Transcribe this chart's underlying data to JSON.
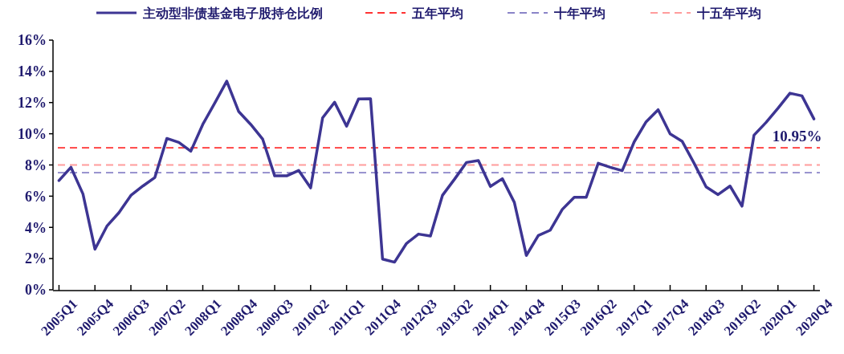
{
  "chart_data": {
    "type": "line",
    "categories": [
      "2005Q1",
      null,
      null,
      "2005Q4",
      null,
      null,
      "2006Q3",
      null,
      null,
      "2007Q2",
      null,
      null,
      "2008Q1",
      null,
      null,
      "2008Q4",
      null,
      null,
      "2009Q3",
      null,
      null,
      "2010Q2",
      null,
      null,
      "2011Q1",
      null,
      null,
      "2011Q4",
      null,
      null,
      "2012Q3",
      null,
      null,
      "2013Q2",
      null,
      null,
      "2014Q1",
      null,
      null,
      "2014Q4",
      null,
      null,
      "2015Q3",
      null,
      null,
      "2016Q2",
      null,
      null,
      "2017Q1",
      null,
      null,
      "2017Q4",
      null,
      null,
      "2018Q3",
      null,
      null,
      "2019Q2",
      null,
      null,
      "2020Q1",
      null,
      null,
      "2020Q4"
    ],
    "series": [
      {
        "name": "主动型非债基金电子股持仓比例",
        "color": "#3d3593",
        "values": [
          7.0,
          7.85,
          6.14,
          2.6,
          4.08,
          4.94,
          6.05,
          6.65,
          7.2,
          9.7,
          9.45,
          8.88,
          10.6,
          11.97,
          13.37,
          11.42,
          10.6,
          9.65,
          7.3,
          7.3,
          7.65,
          6.53,
          11.02,
          12.02,
          10.48,
          12.23,
          12.25,
          1.97,
          1.77,
          2.97,
          3.57,
          3.45,
          6.05,
          7.08,
          8.16,
          8.28,
          6.62,
          7.12,
          5.6,
          2.2,
          3.48,
          3.82,
          5.15,
          5.93,
          5.93,
          8.11,
          7.85,
          7.63,
          9.48,
          10.77,
          11.54,
          9.99,
          9.52,
          8.11,
          6.6,
          6.1,
          6.65,
          5.36,
          9.91,
          10.72,
          11.63,
          12.6,
          12.43,
          10.95
        ],
        "value_labels": [
          null,
          null,
          null,
          null,
          null,
          null,
          null,
          null,
          null,
          null,
          null,
          null,
          null,
          null,
          null,
          null,
          null,
          null,
          null,
          null,
          null,
          null,
          null,
          null,
          null,
          null,
          null,
          null,
          null,
          null,
          null,
          null,
          null,
          null,
          null,
          null,
          null,
          null,
          null,
          null,
          null,
          null,
          null,
          null,
          null,
          null,
          null,
          null,
          null,
          null,
          null,
          null,
          null,
          null,
          null,
          null,
          null,
          null,
          null,
          null,
          null,
          null,
          null,
          "10.95%"
        ]
      }
    ],
    "ref_lines": [
      {
        "axis": "y",
        "value": 9.1,
        "label": "五年平均",
        "color": "#ff3333",
        "line_style": "dashed"
      },
      {
        "axis": "y",
        "value": 7.5,
        "label": "十年平均",
        "color": "#8a84c8",
        "line_style": "dashed"
      },
      {
        "axis": "y",
        "value": 8.0,
        "label": "十五年平均",
        "color": "#ff9c9c",
        "line_style": "dashed"
      }
    ],
    "ylim": [
      0,
      16
    ],
    "yticks": [
      {
        "value": 0,
        "label": "0%"
      },
      {
        "value": 2,
        "label": "2%"
      },
      {
        "value": 4,
        "label": "4%"
      },
      {
        "value": 6,
        "label": "6%"
      },
      {
        "value": 8,
        "label": "8%"
      },
      {
        "value": 10,
        "label": "10%"
      },
      {
        "value": 12,
        "label": "12%"
      },
      {
        "value": 14,
        "label": "14%"
      },
      {
        "value": 16,
        "label": "16%"
      }
    ],
    "legend": "top",
    "grid": false,
    "marker": "none",
    "line_style": "solid"
  }
}
